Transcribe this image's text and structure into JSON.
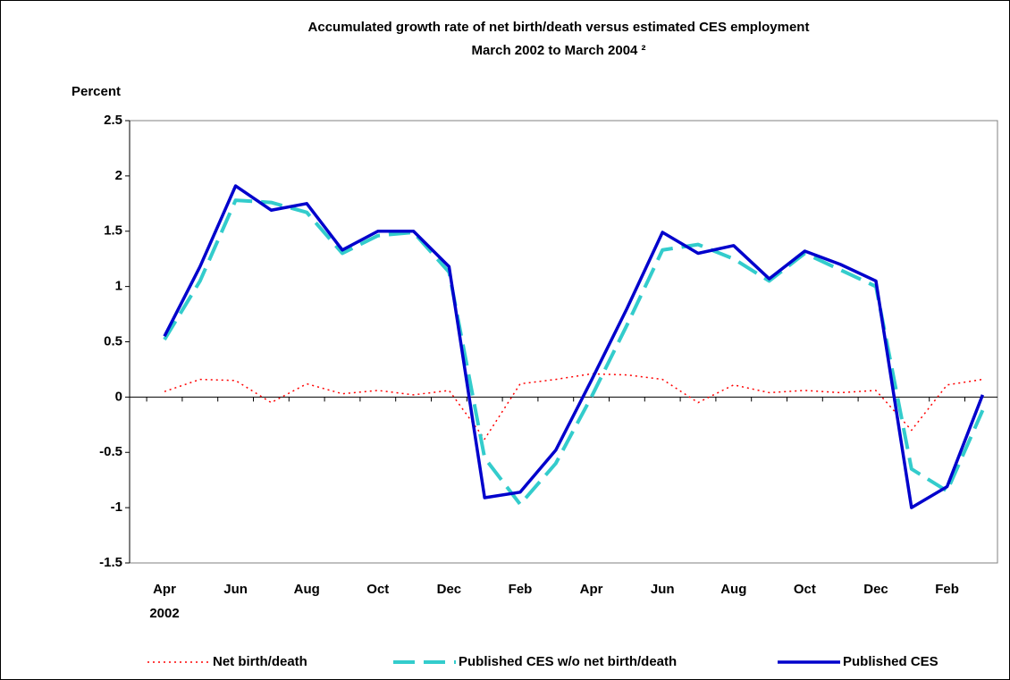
{
  "chart_data": {
    "type": "line",
    "title": [
      "Accumulated growth rate of net birth/death versus estimated CES employment",
      "March 2002 to March 2004 ²"
    ],
    "y_label": "Percent",
    "categories": [
      "Apr",
      null,
      "Jun",
      null,
      "Aug",
      null,
      "Oct",
      null,
      "Dec",
      null,
      "Feb",
      null,
      "Apr",
      null,
      "Jun",
      null,
      "Aug",
      null,
      "Oct",
      null,
      "Dec",
      null,
      "Feb",
      null
    ],
    "x_year_label": "2002",
    "ylim": [
      -1.5,
      2.5
    ],
    "yticks": [
      2.5,
      2,
      1.5,
      1,
      0.5,
      0,
      -0.5,
      -1,
      -1.5
    ],
    "grid": false,
    "legend": "bottom",
    "series": [
      {
        "name": "Net birth/death",
        "color": "#ff0000",
        "style": "dotted",
        "values": [
          0.05,
          0.16,
          0.15,
          -0.05,
          0.12,
          0.03,
          0.06,
          0.02,
          0.06,
          -0.38,
          0.12,
          0.16,
          0.21,
          0.2,
          0.16,
          -0.05,
          0.11,
          0.04,
          0.06,
          0.04,
          0.06,
          -0.3,
          0.11,
          0.16
        ]
      },
      {
        "name": "Published CES w/o net birth/death",
        "color": "#33cccc",
        "style": "dashed",
        "values": [
          0.52,
          1.05,
          1.78,
          1.76,
          1.67,
          1.3,
          1.46,
          1.49,
          1.13,
          -0.55,
          -0.97,
          -0.6,
          0.0,
          0.65,
          1.33,
          1.38,
          1.25,
          1.05,
          1.3,
          1.15,
          1.0,
          -0.65,
          -0.85,
          -0.12
        ]
      },
      {
        "name": "Published CES",
        "color": "#0000cc",
        "style": "solid",
        "values": [
          0.55,
          1.18,
          1.91,
          1.69,
          1.75,
          1.33,
          1.5,
          1.5,
          1.18,
          -0.91,
          -0.86,
          -0.48,
          0.15,
          0.8,
          1.49,
          1.3,
          1.37,
          1.07,
          1.32,
          1.2,
          1.05,
          -1.0,
          -0.81,
          0.02
        ]
      }
    ]
  }
}
